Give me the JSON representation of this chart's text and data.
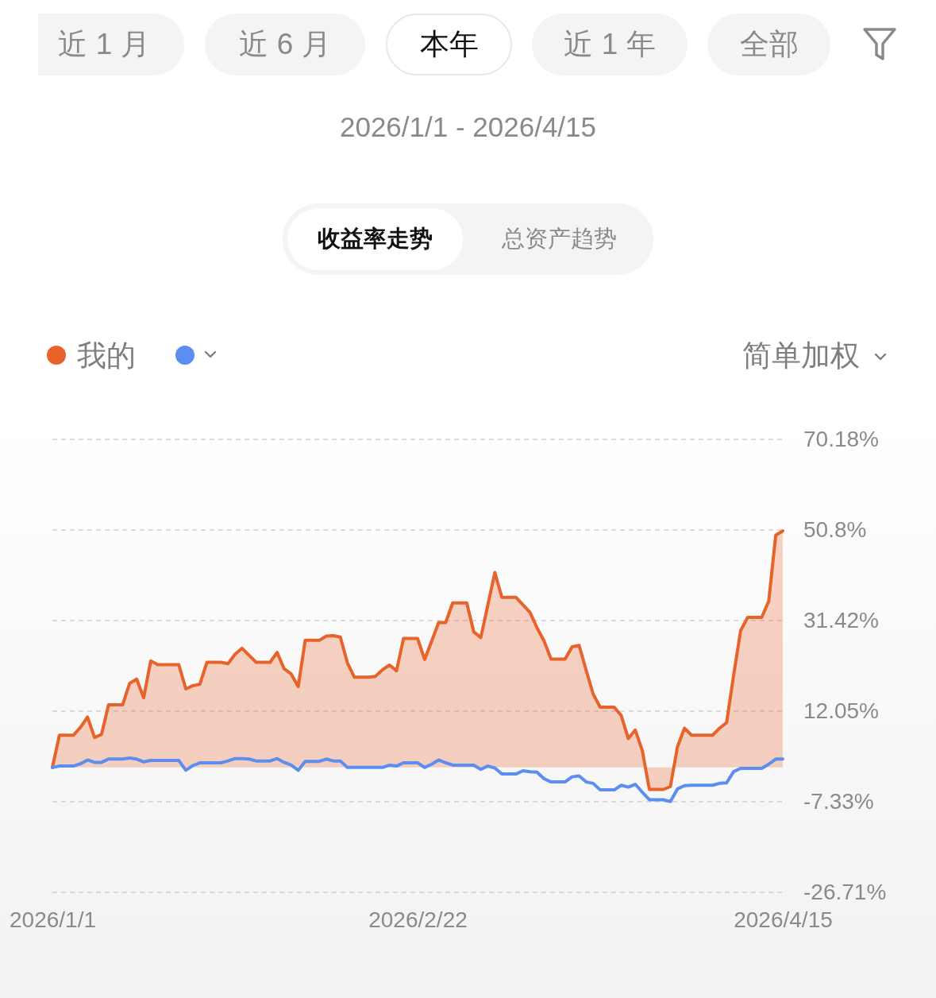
{
  "chart_data": {
    "type": "line",
    "subtitle": "2026/1/1 - 2026/4/15",
    "annotations": [
      "近 1 月",
      "近 6 月",
      "本年",
      "近 1 年",
      "全部",
      "收益率走势",
      "总资产趋势",
      "简单加权"
    ],
    "x": [
      "2026-01-01",
      "2026-01-02",
      "2026-01-04",
      "2026-01-05",
      "2026-01-06",
      "2026-01-07",
      "2026-01-08",
      "2026-01-09",
      "2026-01-11",
      "2026-01-12",
      "2026-01-13",
      "2026-01-14",
      "2026-01-15",
      "2026-01-16",
      "2026-01-19",
      "2026-01-20",
      "2026-01-21",
      "2026-01-22",
      "2026-01-23",
      "2026-01-25",
      "2026-01-26",
      "2026-01-27",
      "2026-01-28",
      "2026-01-29",
      "2026-01-30",
      "2026-02-01",
      "2026-02-02",
      "2026-02-03",
      "2026-02-04",
      "2026-02-05",
      "2026-02-06",
      "2026-02-08",
      "2026-02-09",
      "2026-02-10",
      "2026-02-11",
      "2026-02-12",
      "2026-02-13",
      "2026-02-15",
      "2026-02-16",
      "2026-02-17",
      "2026-02-18",
      "2026-02-19",
      "2026-02-20",
      "2026-02-22",
      "2026-02-23",
      "2026-02-24",
      "2026-02-25",
      "2026-02-26",
      "2026-02-27",
      "2026-03-01",
      "2026-03-02",
      "2026-03-03",
      "2026-03-04",
      "2026-03-05",
      "2026-03-06",
      "2026-03-08",
      "2026-03-09",
      "2026-03-10",
      "2026-03-11",
      "2026-03-12",
      "2026-03-13",
      "2026-03-15",
      "2026-03-16",
      "2026-03-17",
      "2026-03-18",
      "2026-03-19",
      "2026-03-20",
      "2026-03-22",
      "2026-03-23",
      "2026-03-24",
      "2026-03-25",
      "2026-03-26",
      "2026-03-27",
      "2026-03-29",
      "2026-03-30",
      "2026-03-31",
      "2026-04-01",
      "2026-04-02",
      "2026-04-05",
      "2026-04-06",
      "2026-04-07",
      "2026-04-08",
      "2026-04-09",
      "2026-04-10",
      "2026-04-12",
      "2026-04-13",
      "2026-04-14",
      "2026-04-15"
    ],
    "xlim": [
      "2026-01-01",
      "2026-04-15"
    ],
    "xticks": [
      {
        "value": "2026-01-01",
        "label": "2026/1/1"
      },
      {
        "value": "2026-02-22",
        "label": "2026/2/22"
      },
      {
        "value": "2026-04-15",
        "label": "2026/4/15"
      }
    ],
    "ylim": [
      -26.71,
      70.18
    ],
    "yticks": [
      {
        "value": 70.18,
        "label": "70.18%"
      },
      {
        "value": 50.8,
        "label": "50.8%"
      },
      {
        "value": 31.42,
        "label": "31.42%"
      },
      {
        "value": 12.05,
        "label": "12.05%"
      },
      {
        "value": -7.33,
        "label": "-7.33%"
      },
      {
        "value": -26.71,
        "label": "-26.71%"
      }
    ],
    "grid": "y",
    "legend": "top left",
    "series": [
      {
        "name": "我的",
        "type": "area",
        "color": "#e8632b",
        "values": [
          0,
          6.9,
          6.9,
          8.6,
          10.8,
          6.4,
          7.1,
          13.4,
          13.4,
          18.0,
          18.9,
          14.9,
          22.8,
          22.0,
          22.0,
          16.8,
          17.5,
          17.8,
          22.5,
          22.5,
          22.2,
          24.2,
          25.5,
          24.0,
          22.5,
          22.5,
          24.6,
          21.1,
          20.0,
          17.3,
          27.2,
          27.2,
          28.1,
          28.2,
          27.9,
          22.4,
          19.3,
          19.3,
          19.5,
          20.9,
          21.9,
          20.7,
          27.6,
          27.6,
          23.1,
          27.0,
          31.0,
          31.0,
          35.2,
          35.2,
          29.0,
          27.8,
          34.7,
          41.7,
          36.4,
          36.4,
          34.8,
          33.2,
          29.9,
          27.1,
          23.2,
          23.2,
          25.8,
          26.1,
          20.8,
          15.7,
          12.9,
          12.9,
          11.1,
          6.2,
          8.0,
          3.6,
          -4.7,
          -4.7,
          -4.1,
          4.4,
          8.4,
          6.9,
          6.9,
          8.4,
          9.6,
          19.7,
          29.3,
          32.1,
          32.1,
          35.6,
          49.7,
          50.6
        ]
      },
      {
        "type": "line",
        "color": "#5b8ef0",
        "values": [
          0,
          0.3,
          0.3,
          0.8,
          1.6,
          1.1,
          1.1,
          1.8,
          1.8,
          2.0,
          1.8,
          1.2,
          1.5,
          1.5,
          1.5,
          -0.6,
          0.4,
          1.0,
          1.0,
          1.0,
          1.4,
          1.9,
          1.9,
          1.8,
          1.4,
          1.4,
          1.9,
          1.1,
          0.5,
          -0.6,
          1.3,
          1.3,
          1.8,
          1.4,
          1.4,
          0.0,
          0.0,
          0.0,
          0.0,
          0.0,
          0.5,
          0.3,
          1.0,
          1.0,
          0.0,
          0.7,
          1.6,
          1.0,
          0.5,
          0.5,
          0.5,
          -0.4,
          0.3,
          -0.1,
          -1.4,
          -1.4,
          -0.7,
          -0.9,
          -1.0,
          -2.4,
          -3.1,
          -3.1,
          -2.0,
          -1.8,
          -3.1,
          -3.4,
          -4.8,
          -4.8,
          -3.8,
          -4.2,
          -3.6,
          -5.3,
          -6.9,
          -6.9,
          -7.3,
          -4.6,
          -3.9,
          -3.8,
          -3.8,
          -3.4,
          -3.3,
          -0.9,
          -0.2,
          -0.2,
          -0.2,
          0.7,
          1.8,
          1.8
        ]
      }
    ]
  }
}
